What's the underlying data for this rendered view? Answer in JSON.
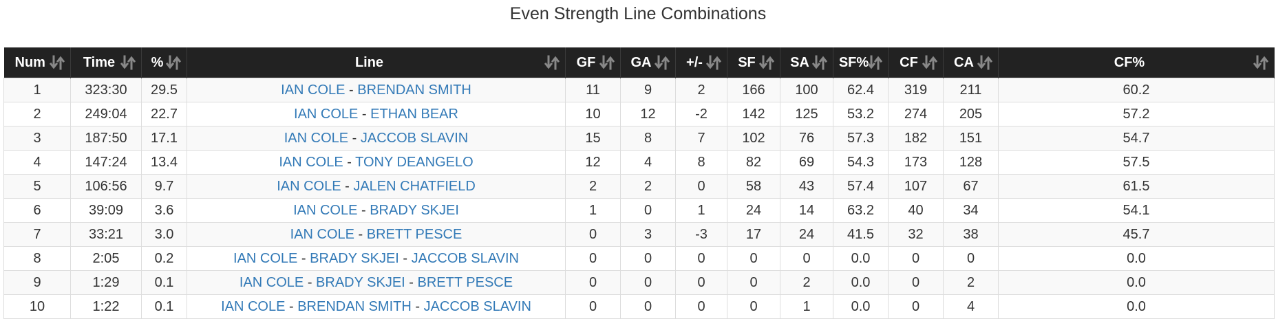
{
  "title": "Even Strength Line Combinations",
  "columns": [
    "Num",
    "Time",
    "%",
    "Line",
    "GF",
    "GA",
    "+/-",
    "SF",
    "SA",
    "SF%",
    "CF",
    "CA",
    "CF%"
  ],
  "separator": " - ",
  "rows": [
    {
      "num": "1",
      "time": "323:30",
      "pct": "29.5",
      "line": [
        "IAN COLE",
        "BRENDAN SMITH"
      ],
      "gf": "11",
      "ga": "9",
      "pm": "2",
      "sf": "166",
      "sa": "100",
      "sfp": "62.4",
      "cf": "319",
      "ca": "211",
      "cfp": "60.2"
    },
    {
      "num": "2",
      "time": "249:04",
      "pct": "22.7",
      "line": [
        "IAN COLE",
        "ETHAN BEAR"
      ],
      "gf": "10",
      "ga": "12",
      "pm": "-2",
      "sf": "142",
      "sa": "125",
      "sfp": "53.2",
      "cf": "274",
      "ca": "205",
      "cfp": "57.2"
    },
    {
      "num": "3",
      "time": "187:50",
      "pct": "17.1",
      "line": [
        "IAN COLE",
        "JACCOB SLAVIN"
      ],
      "gf": "15",
      "ga": "8",
      "pm": "7",
      "sf": "102",
      "sa": "76",
      "sfp": "57.3",
      "cf": "182",
      "ca": "151",
      "cfp": "54.7"
    },
    {
      "num": "4",
      "time": "147:24",
      "pct": "13.4",
      "line": [
        "IAN COLE",
        "TONY DEANGELO"
      ],
      "gf": "12",
      "ga": "4",
      "pm": "8",
      "sf": "82",
      "sa": "69",
      "sfp": "54.3",
      "cf": "173",
      "ca": "128",
      "cfp": "57.5"
    },
    {
      "num": "5",
      "time": "106:56",
      "pct": "9.7",
      "line": [
        "IAN COLE",
        "JALEN CHATFIELD"
      ],
      "gf": "2",
      "ga": "2",
      "pm": "0",
      "sf": "58",
      "sa": "43",
      "sfp": "57.4",
      "cf": "107",
      "ca": "67",
      "cfp": "61.5"
    },
    {
      "num": "6",
      "time": "39:09",
      "pct": "3.6",
      "line": [
        "IAN COLE",
        "BRADY SKJEI"
      ],
      "gf": "1",
      "ga": "0",
      "pm": "1",
      "sf": "24",
      "sa": "14",
      "sfp": "63.2",
      "cf": "40",
      "ca": "34",
      "cfp": "54.1"
    },
    {
      "num": "7",
      "time": "33:21",
      "pct": "3.0",
      "line": [
        "IAN COLE",
        "BRETT PESCE"
      ],
      "gf": "0",
      "ga": "3",
      "pm": "-3",
      "sf": "17",
      "sa": "24",
      "sfp": "41.5",
      "cf": "32",
      "ca": "38",
      "cfp": "45.7"
    },
    {
      "num": "8",
      "time": "2:05",
      "pct": "0.2",
      "line": [
        "IAN COLE",
        "BRADY SKJEI",
        "JACCOB SLAVIN"
      ],
      "gf": "0",
      "ga": "0",
      "pm": "0",
      "sf": "0",
      "sa": "0",
      "sfp": "0.0",
      "cf": "0",
      "ca": "0",
      "cfp": "0.0"
    },
    {
      "num": "9",
      "time": "1:29",
      "pct": "0.1",
      "line": [
        "IAN COLE",
        "BRADY SKJEI",
        "BRETT PESCE"
      ],
      "gf": "0",
      "ga": "0",
      "pm": "0",
      "sf": "0",
      "sa": "2",
      "sfp": "0.0",
      "cf": "0",
      "ca": "2",
      "cfp": "0.0"
    },
    {
      "num": "10",
      "time": "1:22",
      "pct": "0.1",
      "line": [
        "IAN COLE",
        "BRENDAN SMITH",
        "JACCOB SLAVIN"
      ],
      "gf": "0",
      "ga": "0",
      "pm": "0",
      "sf": "0",
      "sa": "1",
      "sfp": "0.0",
      "cf": "0",
      "ca": "4",
      "cfp": "0.0"
    }
  ],
  "icons": {
    "sort": "sort-icon"
  },
  "colors": {
    "header_bg": "#222222",
    "link": "#337ab7",
    "stripe": "#f9f9f9",
    "sort_icon": "#888888"
  }
}
